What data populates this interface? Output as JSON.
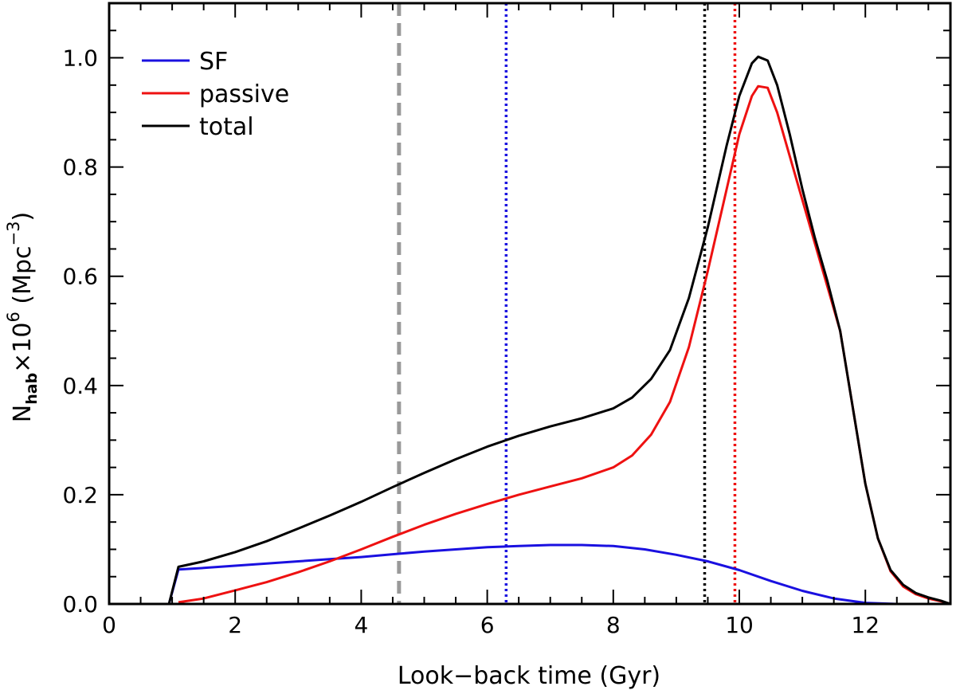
{
  "chart_data": {
    "type": "line",
    "xlabel": "Look−back time (Gyr)",
    "ylabel": {
      "n": "N",
      "sub": "hab",
      "times": "×10",
      "exp": "6",
      "unit_open": " (Mpc",
      "unit_exp": "−3",
      "unit_close": ")"
    },
    "xlim": [
      0,
      13.35
    ],
    "ylim": [
      0,
      1.1
    ],
    "xticks": [
      0,
      2,
      4,
      6,
      8,
      10,
      12
    ],
    "xtick_labels": [
      "0",
      "2",
      "4",
      "6",
      "8",
      "10",
      "12"
    ],
    "yticks": [
      0.0,
      0.2,
      0.4,
      0.6,
      0.8,
      1.0
    ],
    "ytick_labels": [
      "0.0",
      "0.2",
      "0.4",
      "0.6",
      "0.8",
      "1.0"
    ],
    "legend_position": "top-left",
    "series": [
      {
        "name": "SF",
        "color": "#1a10e0",
        "points": [
          [
            0.95,
            0
          ],
          [
            1.1,
            0.063
          ],
          [
            1.5,
            0.066
          ],
          [
            2,
            0.07
          ],
          [
            2.5,
            0.074
          ],
          [
            3,
            0.078
          ],
          [
            3.5,
            0.082
          ],
          [
            4,
            0.086
          ],
          [
            4.5,
            0.091
          ],
          [
            5,
            0.096
          ],
          [
            5.5,
            0.1
          ],
          [
            6,
            0.104
          ],
          [
            6.5,
            0.106
          ],
          [
            7,
            0.108
          ],
          [
            7.5,
            0.108
          ],
          [
            8,
            0.106
          ],
          [
            8.5,
            0.1
          ],
          [
            9,
            0.09
          ],
          [
            9.5,
            0.078
          ],
          [
            10,
            0.062
          ],
          [
            10.5,
            0.042
          ],
          [
            11,
            0.024
          ],
          [
            11.5,
            0.01
          ],
          [
            12,
            0.002
          ],
          [
            12.5,
            0.0
          ],
          [
            13.35,
            0.0
          ]
        ]
      },
      {
        "name": "passive",
        "color": "#ee1111",
        "points": [
          [
            1.1,
            0.003
          ],
          [
            1.5,
            0.01
          ],
          [
            2,
            0.025
          ],
          [
            2.5,
            0.04
          ],
          [
            3,
            0.058
          ],
          [
            3.5,
            0.078
          ],
          [
            4,
            0.1
          ],
          [
            4.5,
            0.123
          ],
          [
            5,
            0.145
          ],
          [
            5.5,
            0.165
          ],
          [
            6,
            0.183
          ],
          [
            6.5,
            0.2
          ],
          [
            7,
            0.215
          ],
          [
            7.5,
            0.23
          ],
          [
            8,
            0.25
          ],
          [
            8.3,
            0.272
          ],
          [
            8.6,
            0.31
          ],
          [
            8.9,
            0.37
          ],
          [
            9.2,
            0.47
          ],
          [
            9.5,
            0.61
          ],
          [
            9.8,
            0.76
          ],
          [
            10.0,
            0.86
          ],
          [
            10.2,
            0.93
          ],
          [
            10.3,
            0.948
          ],
          [
            10.45,
            0.945
          ],
          [
            10.6,
            0.9
          ],
          [
            10.8,
            0.82
          ],
          [
            11.0,
            0.74
          ],
          [
            11.2,
            0.66
          ],
          [
            11.4,
            0.58
          ],
          [
            11.6,
            0.5
          ],
          [
            11.8,
            0.36
          ],
          [
            12.0,
            0.22
          ],
          [
            12.2,
            0.12
          ],
          [
            12.4,
            0.06
          ],
          [
            12.6,
            0.032
          ],
          [
            12.8,
            0.018
          ],
          [
            13.0,
            0.01
          ],
          [
            13.2,
            0.005
          ],
          [
            13.35,
            0.0
          ]
        ]
      },
      {
        "name": "total",
        "color": "#000000",
        "points": [
          [
            0.95,
            0
          ],
          [
            1.1,
            0.068
          ],
          [
            1.5,
            0.078
          ],
          [
            2,
            0.095
          ],
          [
            2.5,
            0.115
          ],
          [
            3,
            0.138
          ],
          [
            3.5,
            0.162
          ],
          [
            4,
            0.187
          ],
          [
            4.5,
            0.214
          ],
          [
            5,
            0.24
          ],
          [
            5.5,
            0.265
          ],
          [
            6,
            0.288
          ],
          [
            6.5,
            0.308
          ],
          [
            7,
            0.325
          ],
          [
            7.5,
            0.34
          ],
          [
            8,
            0.358
          ],
          [
            8.3,
            0.378
          ],
          [
            8.6,
            0.412
          ],
          [
            8.9,
            0.465
          ],
          [
            9.2,
            0.56
          ],
          [
            9.5,
            0.69
          ],
          [
            9.8,
            0.84
          ],
          [
            10.0,
            0.93
          ],
          [
            10.2,
            0.99
          ],
          [
            10.3,
            1.002
          ],
          [
            10.45,
            0.995
          ],
          [
            10.6,
            0.95
          ],
          [
            10.8,
            0.86
          ],
          [
            11.0,
            0.76
          ],
          [
            11.2,
            0.67
          ],
          [
            11.4,
            0.59
          ],
          [
            11.6,
            0.5
          ],
          [
            11.8,
            0.36
          ],
          [
            12.0,
            0.22
          ],
          [
            12.2,
            0.12
          ],
          [
            12.4,
            0.062
          ],
          [
            12.6,
            0.035
          ],
          [
            12.8,
            0.02
          ],
          [
            13.0,
            0.012
          ],
          [
            13.2,
            0.006
          ],
          [
            13.35,
            0.0
          ]
        ]
      }
    ],
    "vlines": [
      {
        "name": "gray-dashed",
        "x": 4.6,
        "color": "#999999",
        "style": "dashed"
      },
      {
        "name": "blue-dotted",
        "x": 6.3,
        "color": "#1a10e0",
        "style": "dotted"
      },
      {
        "name": "black-dotted",
        "x": 9.45,
        "color": "#000000",
        "style": "dotted"
      },
      {
        "name": "red-dotted",
        "x": 9.93,
        "color": "#ee1111",
        "style": "dotted"
      }
    ]
  }
}
